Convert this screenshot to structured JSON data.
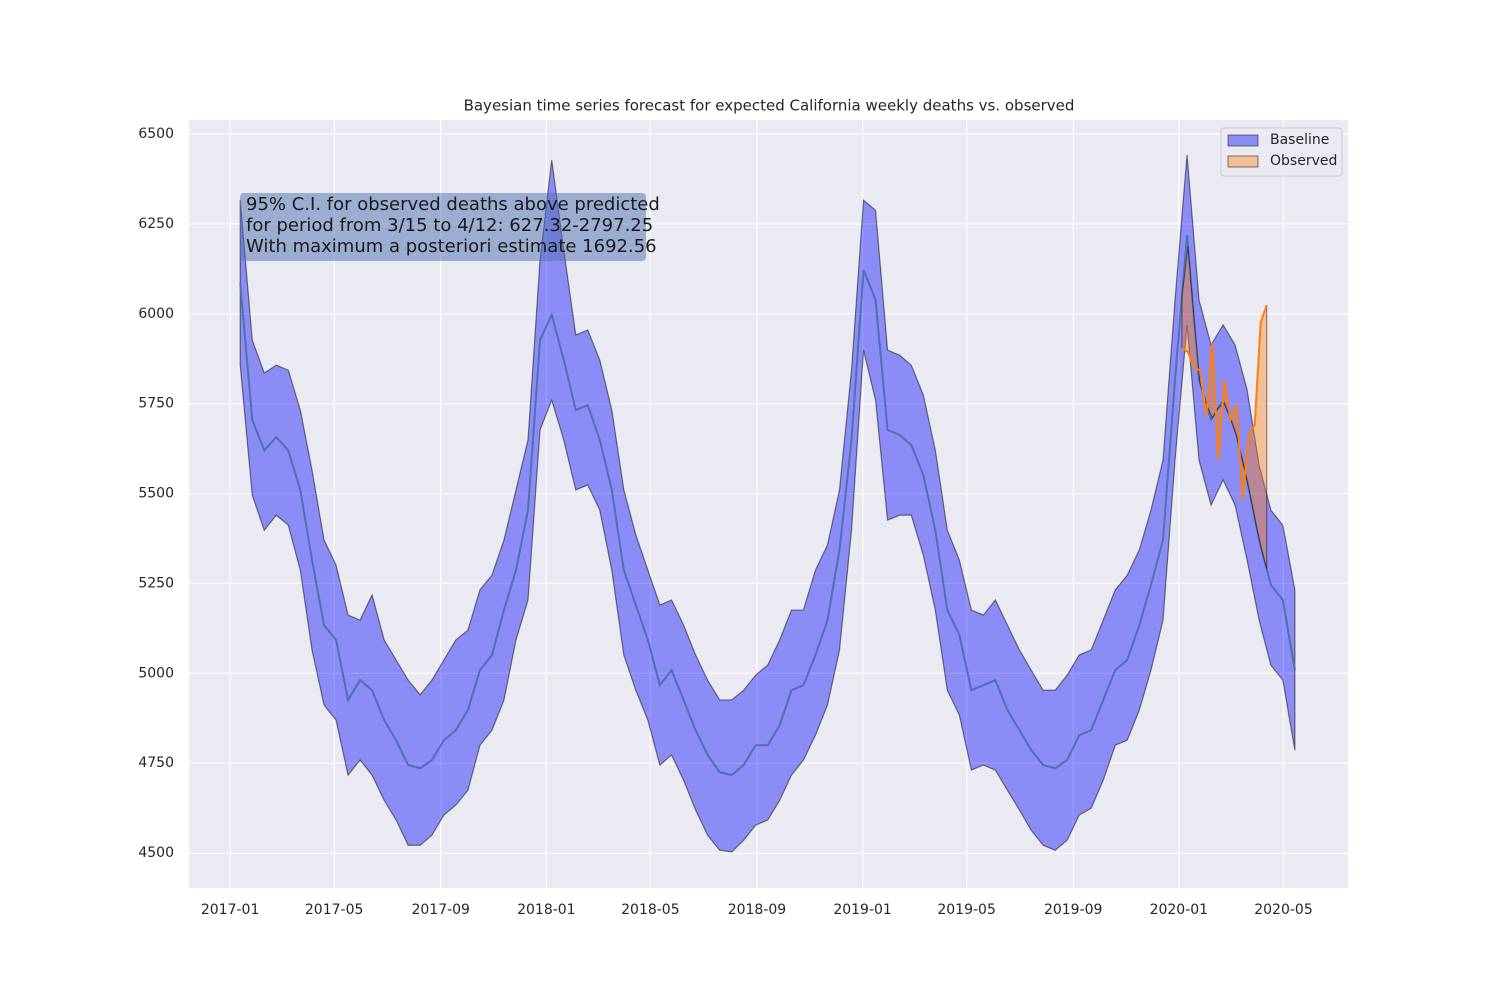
{
  "chart_data": {
    "type": "band-line",
    "title": "Bayesian time series forecast for expected California weekly deaths vs. observed",
    "annotation": [
      "95% C.I. for observed deaths above predicted",
      "for period from 3/15 to 4/12: 627.32-2797.25",
      "With maximum a posteriori estimate 1692.56"
    ],
    "legend": "upper right",
    "grid": true,
    "xlim": [
      2016.87,
      2020.535
    ],
    "xticks": [
      {
        "value": 2017,
        "label": "2017-01"
      },
      {
        "value": 2017.329,
        "label": "2017-05"
      },
      {
        "value": 2017.666,
        "label": "2017-09"
      },
      {
        "value": 2018,
        "label": "2018-01"
      },
      {
        "value": 2018.329,
        "label": "2018-05"
      },
      {
        "value": 2018.666,
        "label": "2018-09"
      },
      {
        "value": 2019,
        "label": "2019-01"
      },
      {
        "value": 2019.329,
        "label": "2019-05"
      },
      {
        "value": 2019.666,
        "label": "2019-09"
      },
      {
        "value": 2020,
        "label": "2020-01"
      },
      {
        "value": 2020.331,
        "label": "2020-05"
      }
    ],
    "ylim": [
      4403,
      6539
    ],
    "yticks": [
      4500,
      4750,
      5000,
      5250,
      5500,
      5750,
      6000,
      6250,
      6500
    ],
    "series": [
      {
        "name": "Baseline",
        "color": "#0000ff",
        "line_color": "#4c72b0",
        "x": [
          2017.032,
          2017.07,
          2017.108,
          2017.146,
          2017.184,
          2017.222,
          2017.259,
          2017.297,
          2017.335,
          2017.373,
          2017.411,
          2017.449,
          2017.487,
          2017.525,
          2017.563,
          2017.601,
          2017.638,
          2017.676,
          2017.714,
          2017.752,
          2017.79,
          2017.828,
          2017.866,
          2017.904,
          2017.942,
          2017.98,
          2018.017,
          2018.055,
          2018.093,
          2018.131,
          2018.169,
          2018.207,
          2018.245,
          2018.283,
          2018.321,
          2018.359,
          2018.396,
          2018.434,
          2018.472,
          2018.51,
          2018.548,
          2018.586,
          2018.624,
          2018.662,
          2018.7,
          2018.738,
          2018.775,
          2018.813,
          2018.851,
          2018.889,
          2018.927,
          2018.965,
          2019.003,
          2019.041,
          2019.079,
          2019.117,
          2019.154,
          2019.192,
          2019.23,
          2019.268,
          2019.306,
          2019.344,
          2019.382,
          2019.42,
          2019.458,
          2019.496,
          2019.533,
          2019.571,
          2019.609,
          2019.647,
          2019.685,
          2019.723,
          2019.761,
          2019.799,
          2019.837,
          2019.875,
          2019.912,
          2019.95,
          2019.988,
          2020.026,
          2020.064,
          2020.102,
          2020.14,
          2020.178,
          2020.216,
          2020.254,
          2020.291,
          2020.329,
          2020.367
        ],
        "values": [
          6085,
          5705,
          5620,
          5657,
          5620,
          5510,
          5315,
          5134,
          5093,
          4926,
          4981,
          4953,
          4870,
          4814,
          4745,
          4736,
          4759,
          4814,
          4842,
          4898,
          5009,
          5051,
          5176,
          5287,
          5454,
          5927,
          5997,
          5872,
          5732,
          5746,
          5649,
          5510,
          5287,
          5190,
          5093,
          4967,
          5009,
          4926,
          4842,
          4773,
          4725,
          4717,
          4745,
          4800,
          4800,
          4856,
          4953,
          4967,
          5051,
          5148,
          5343,
          5649,
          6122,
          6039,
          5677,
          5663,
          5635,
          5552,
          5398,
          5176,
          5107,
          4953,
          4967,
          4981,
          4898,
          4842,
          4787,
          4745,
          4736,
          4759,
          4828,
          4842,
          4926,
          5009,
          5037,
          5134,
          5246,
          5371,
          5816,
          6219,
          5816,
          5705,
          5760,
          5677,
          5538,
          5371,
          5246,
          5204,
          5009
        ],
        "upper": [
          6316,
          5927,
          5835,
          5857,
          5843,
          5732,
          5565,
          5371,
          5301,
          5162,
          5148,
          5218,
          5093,
          5037,
          4981,
          4940,
          4981,
          5037,
          5093,
          5120,
          5232,
          5273,
          5371,
          5510,
          5649,
          6149,
          6428,
          6177,
          5941,
          5955,
          5871,
          5732,
          5510,
          5385,
          5287,
          5190,
          5204,
          5134,
          5051,
          4981,
          4926,
          4926,
          4953,
          4995,
          5023,
          5093,
          5176,
          5176,
          5287,
          5357,
          5510,
          5843,
          6316,
          6288,
          5899,
          5885,
          5857,
          5774,
          5621,
          5398,
          5315,
          5176,
          5162,
          5204,
          5134,
          5065,
          5009,
          4953,
          4953,
          4995,
          5051,
          5065,
          5148,
          5232,
          5273,
          5343,
          5454,
          5593,
          6038,
          6442,
          6038,
          5913,
          5969,
          5913,
          5788,
          5579,
          5454,
          5412,
          5232
        ],
        "lower": [
          5857,
          5496,
          5398,
          5440,
          5412,
          5287,
          5065,
          4912,
          4870,
          4717,
          4759,
          4717,
          4647,
          4592,
          4522,
          4522,
          4550,
          4606,
          4634,
          4675,
          4800,
          4842,
          4926,
          5093,
          5204,
          5677,
          5760,
          5649,
          5510,
          5524,
          5454,
          5287,
          5051,
          4953,
          4870,
          4745,
          4773,
          4703,
          4620,
          4550,
          4508,
          4503,
          4536,
          4578,
          4592,
          4647,
          4717,
          4759,
          4828,
          4912,
          5065,
          5398,
          5899,
          5760,
          5426,
          5440,
          5440,
          5329,
          5176,
          4953,
          4884,
          4731,
          4745,
          4731,
          4675,
          4620,
          4564,
          4522,
          4508,
          4536,
          4606,
          4625,
          4703,
          4800,
          4814,
          4898,
          5009,
          5148,
          5593,
          5969,
          5593,
          5468,
          5538,
          5468,
          5315,
          5148,
          5023,
          4981,
          4786
        ]
      },
      {
        "name": "Observed",
        "color": "#ff7f0e",
        "x": [
          2020.01,
          2020.029,
          2020.048,
          2020.067,
          2020.087,
          2020.106,
          2020.125,
          2020.144,
          2020.163,
          2020.183,
          2020.202,
          2020.221,
          2020.24,
          2020.259,
          2020.278
        ],
        "values": [
          5905,
          5894,
          5849,
          5843,
          5718,
          5919,
          5593,
          5816,
          5705,
          5746,
          5482,
          5663,
          5691,
          5977,
          6024
        ]
      }
    ]
  }
}
